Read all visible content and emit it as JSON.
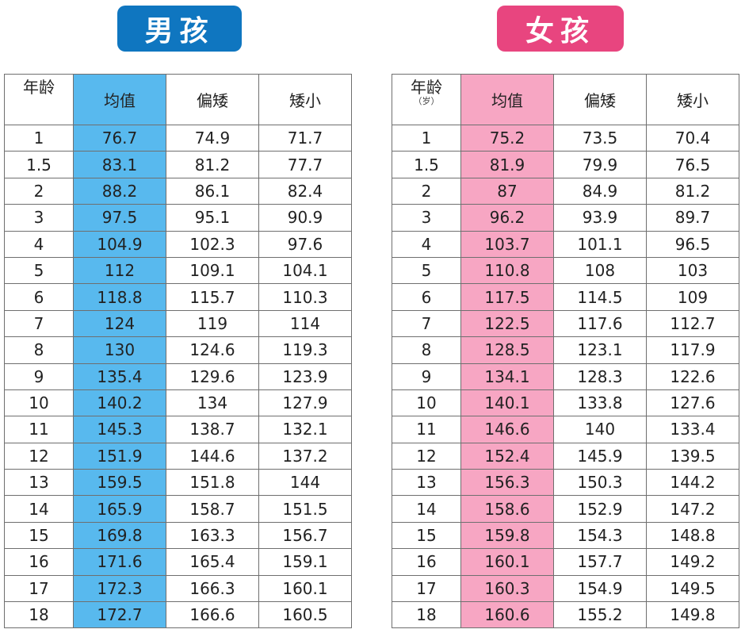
{
  "boys": {
    "badge": "男孩",
    "headers": {
      "age": "年龄",
      "mean": "均值",
      "short": "偏矮",
      "very_short": "矮小"
    },
    "rows": [
      [
        "1",
        "76.7",
        "74.9",
        "71.7"
      ],
      [
        "1.5",
        "83.1",
        "81.2",
        "77.7"
      ],
      [
        "2",
        "88.2",
        "86.1",
        "82.4"
      ],
      [
        "3",
        "97.5",
        "95.1",
        "90.9"
      ],
      [
        "4",
        "104.9",
        "102.3",
        "97.6"
      ],
      [
        "5",
        "112",
        "109.1",
        "104.1"
      ],
      [
        "6",
        "118.8",
        "115.7",
        "110.3"
      ],
      [
        "7",
        "124",
        "119",
        "114"
      ],
      [
        "8",
        "130",
        "124.6",
        "119.3"
      ],
      [
        "9",
        "135.4",
        "129.6",
        "123.9"
      ],
      [
        "10",
        "140.2",
        "134",
        "127.9"
      ],
      [
        "11",
        "145.3",
        "138.7",
        "132.1"
      ],
      [
        "12",
        "151.9",
        "144.6",
        "137.2"
      ],
      [
        "13",
        "159.5",
        "151.8",
        "144"
      ],
      [
        "14",
        "165.9",
        "158.7",
        "151.5"
      ],
      [
        "15",
        "169.8",
        "163.3",
        "156.7"
      ],
      [
        "16",
        "171.6",
        "165.4",
        "159.1"
      ],
      [
        "17",
        "172.3",
        "166.3",
        "160.1"
      ],
      [
        "18",
        "172.7",
        "166.6",
        "160.5"
      ]
    ]
  },
  "girls": {
    "badge": "女孩",
    "headers": {
      "age": "年龄",
      "age_unit": "（岁）",
      "mean": "均值",
      "short": "偏矮",
      "very_short": "矮小"
    },
    "rows": [
      [
        "1",
        "75.2",
        "73.5",
        "70.4"
      ],
      [
        "1.5",
        "81.9",
        "79.9",
        "76.5"
      ],
      [
        "2",
        "87",
        "84.9",
        "81.2"
      ],
      [
        "3",
        "96.2",
        "93.9",
        "89.7"
      ],
      [
        "4",
        "103.7",
        "101.1",
        "96.5"
      ],
      [
        "5",
        "110.8",
        "108",
        "103"
      ],
      [
        "6",
        "117.5",
        "114.5",
        "109"
      ],
      [
        "7",
        "122.5",
        "117.6",
        "112.7"
      ],
      [
        "8",
        "128.5",
        "123.1",
        "117.9"
      ],
      [
        "9",
        "134.1",
        "128.3",
        "122.6"
      ],
      [
        "10",
        "140.1",
        "133.8",
        "127.6"
      ],
      [
        "11",
        "146.6",
        "140",
        "133.4"
      ],
      [
        "12",
        "152.4",
        "145.9",
        "139.5"
      ],
      [
        "13",
        "156.3",
        "150.3",
        "144.2"
      ],
      [
        "14",
        "158.6",
        "152.9",
        "147.2"
      ],
      [
        "15",
        "159.8",
        "154.3",
        "148.8"
      ],
      [
        "16",
        "160.1",
        "157.7",
        "149.2"
      ],
      [
        "17",
        "160.3",
        "154.9",
        "149.5"
      ],
      [
        "18",
        "160.6",
        "155.2",
        "149.8"
      ]
    ]
  },
  "colors": {
    "boy_badge": "#0f76c0",
    "boy_mean_column": "#58b9ee",
    "girl_badge": "#e8457f",
    "girl_mean_column": "#f7a6c3"
  }
}
